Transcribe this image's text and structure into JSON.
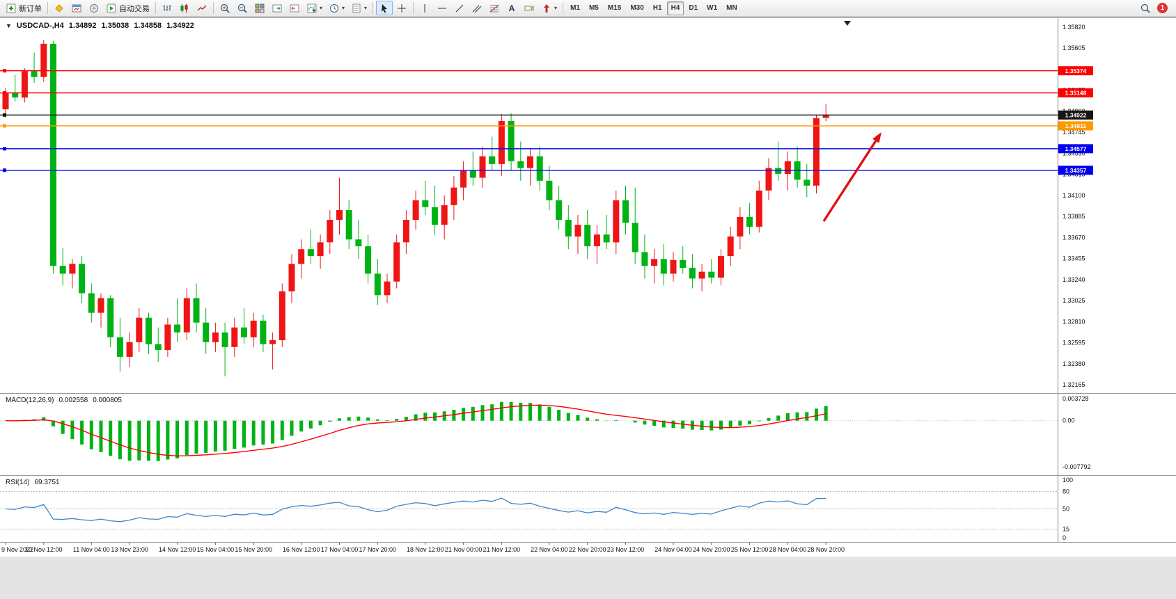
{
  "toolbar": {
    "new_order_label": "新订单",
    "autotrading_label": "自动交易",
    "timeframes": [
      "M1",
      "M5",
      "M15",
      "M30",
      "H1",
      "H4",
      "D1",
      "W1",
      "MN"
    ],
    "active_timeframe": "H4",
    "notification_count": "1"
  },
  "chart_data": {
    "type": "candlestick",
    "symbol": "USDCAD-",
    "period": "H4",
    "header_symbol": "USDCAD-,H4",
    "current": {
      "open": "1.34892",
      "high": "1.35038",
      "low": "1.34858",
      "close": "1.34922"
    },
    "y_axis": {
      "max": 1.3582,
      "min": 1.32165,
      "ticks": [
        1.3582,
        1.35605,
        1.3539,
        1.35175,
        1.3496,
        1.34745,
        1.3453,
        1.34315,
        1.341,
        1.33885,
        1.3367,
        1.33455,
        1.3324,
        1.33025,
        1.3281,
        1.32595,
        1.3238,
        1.32165
      ]
    },
    "levels": [
      {
        "price": 1.35374,
        "color": "#ff0000"
      },
      {
        "price": 1.35148,
        "color": "#ff0000"
      },
      {
        "price": 1.34922,
        "color": "#151515"
      },
      {
        "price": 1.34811,
        "color": "#ff9900"
      },
      {
        "price": 1.34577,
        "color": "#0000ee"
      },
      {
        "price": 1.34357,
        "color": "#0000ee"
      }
    ],
    "candles": [
      [
        1.3498,
        1.352,
        1.349,
        1.3515
      ],
      [
        1.3515,
        1.3533,
        1.3506,
        1.351
      ],
      [
        1.351,
        1.354,
        1.3505,
        1.3537
      ],
      [
        1.3537,
        1.3556,
        1.3525,
        1.3531
      ],
      [
        1.3531,
        1.3569,
        1.3526,
        1.3565
      ],
      [
        1.3565,
        1.3568,
        1.333,
        1.3338
      ],
      [
        1.3338,
        1.3356,
        1.3318,
        1.333
      ],
      [
        1.333,
        1.3345,
        1.3315,
        1.334
      ],
      [
        1.334,
        1.3348,
        1.33,
        1.331
      ],
      [
        1.331,
        1.332,
        1.328,
        1.329
      ],
      [
        1.329,
        1.331,
        1.3275,
        1.3305
      ],
      [
        1.3305,
        1.3308,
        1.3255,
        1.3265
      ],
      [
        1.3265,
        1.3285,
        1.323,
        1.3245
      ],
      [
        1.3245,
        1.327,
        1.3235,
        1.326
      ],
      [
        1.326,
        1.3295,
        1.325,
        1.3285
      ],
      [
        1.3285,
        1.329,
        1.3248,
        1.3258
      ],
      [
        1.3258,
        1.3275,
        1.324,
        1.3252
      ],
      [
        1.3252,
        1.3285,
        1.3245,
        1.3278
      ],
      [
        1.3278,
        1.3305,
        1.326,
        1.327
      ],
      [
        1.327,
        1.3315,
        1.3262,
        1.3305
      ],
      [
        1.3305,
        1.332,
        1.327,
        1.328
      ],
      [
        1.328,
        1.3295,
        1.3248,
        1.326
      ],
      [
        1.326,
        1.328,
        1.325,
        1.327
      ],
      [
        1.327,
        1.328,
        1.3225,
        1.3255
      ],
      [
        1.3255,
        1.3285,
        1.3245,
        1.3275
      ],
      [
        1.3275,
        1.3295,
        1.3258,
        1.3265
      ],
      [
        1.3265,
        1.329,
        1.3255,
        1.3282
      ],
      [
        1.3282,
        1.3288,
        1.325,
        1.3258
      ],
      [
        1.3258,
        1.327,
        1.3232,
        1.3262
      ],
      [
        1.3262,
        1.332,
        1.3255,
        1.3312
      ],
      [
        1.3312,
        1.335,
        1.33,
        1.334
      ],
      [
        1.334,
        1.3365,
        1.3325,
        1.3355
      ],
      [
        1.3355,
        1.3375,
        1.334,
        1.3348
      ],
      [
        1.3348,
        1.337,
        1.3335,
        1.3362
      ],
      [
        1.3362,
        1.3395,
        1.335,
        1.3385
      ],
      [
        1.3385,
        1.3428,
        1.337,
        1.3395
      ],
      [
        1.3395,
        1.3405,
        1.3355,
        1.3365
      ],
      [
        1.3365,
        1.3385,
        1.3345,
        1.3358
      ],
      [
        1.3358,
        1.337,
        1.332,
        1.333
      ],
      [
        1.333,
        1.3345,
        1.3298,
        1.3308
      ],
      [
        1.3308,
        1.333,
        1.33,
        1.3322
      ],
      [
        1.3322,
        1.337,
        1.3315,
        1.3362
      ],
      [
        1.3362,
        1.3395,
        1.335,
        1.3385
      ],
      [
        1.3385,
        1.3415,
        1.3375,
        1.3405
      ],
      [
        1.3405,
        1.3425,
        1.339,
        1.3398
      ],
      [
        1.3398,
        1.342,
        1.337,
        1.338
      ],
      [
        1.338,
        1.341,
        1.3365,
        1.34
      ],
      [
        1.34,
        1.343,
        1.3385,
        1.3418
      ],
      [
        1.3418,
        1.3445,
        1.3405,
        1.3435
      ],
      [
        1.3435,
        1.3455,
        1.342,
        1.3428
      ],
      [
        1.3428,
        1.346,
        1.3418,
        1.345
      ],
      [
        1.345,
        1.347,
        1.3435,
        1.3442
      ],
      [
        1.3442,
        1.3493,
        1.343,
        1.3486
      ],
      [
        1.3486,
        1.3494,
        1.3435,
        1.3445
      ],
      [
        1.3445,
        1.3465,
        1.3425,
        1.3438
      ],
      [
        1.3438,
        1.3458,
        1.342,
        1.345
      ],
      [
        1.345,
        1.346,
        1.3415,
        1.3425
      ],
      [
        1.3425,
        1.344,
        1.3395,
        1.3405
      ],
      [
        1.3405,
        1.342,
        1.3375,
        1.3385
      ],
      [
        1.3385,
        1.34,
        1.3355,
        1.3368
      ],
      [
        1.3368,
        1.339,
        1.335,
        1.338
      ],
      [
        1.338,
        1.3395,
        1.3345,
        1.3358
      ],
      [
        1.3358,
        1.338,
        1.334,
        1.337
      ],
      [
        1.337,
        1.339,
        1.3355,
        1.3362
      ],
      [
        1.3362,
        1.3415,
        1.335,
        1.3405
      ],
      [
        1.3405,
        1.342,
        1.337,
        1.3382
      ],
      [
        1.3382,
        1.3418,
        1.334,
        1.3352
      ],
      [
        1.3352,
        1.337,
        1.3325,
        1.3338
      ],
      [
        1.3338,
        1.3355,
        1.332,
        1.3345
      ],
      [
        1.3345,
        1.336,
        1.3318,
        1.333
      ],
      [
        1.333,
        1.3352,
        1.3322,
        1.3344
      ],
      [
        1.3344,
        1.3358,
        1.333,
        1.3336
      ],
      [
        1.3336,
        1.335,
        1.3315,
        1.3325
      ],
      [
        1.3325,
        1.334,
        1.3312,
        1.3332
      ],
      [
        1.3332,
        1.3345,
        1.332,
        1.3326
      ],
      [
        1.3326,
        1.3355,
        1.3318,
        1.3348
      ],
      [
        1.3348,
        1.3378,
        1.3338,
        1.3368
      ],
      [
        1.3368,
        1.3398,
        1.3355,
        1.3388
      ],
      [
        1.3388,
        1.3402,
        1.337,
        1.3378
      ],
      [
        1.3378,
        1.3425,
        1.3372,
        1.3415
      ],
      [
        1.3415,
        1.3448,
        1.3405,
        1.3438
      ],
      [
        1.3438,
        1.3465,
        1.3425,
        1.3432
      ],
      [
        1.3432,
        1.3455,
        1.3415,
        1.3445
      ],
      [
        1.3445,
        1.346,
        1.3418,
        1.3426
      ],
      [
        1.3426,
        1.3442,
        1.3408,
        1.342
      ],
      [
        1.342,
        1.3492,
        1.3412,
        1.3489
      ],
      [
        1.34892,
        1.35038,
        1.34858,
        1.34922
      ]
    ],
    "time_labels": [
      {
        "i": 0,
        "label": "9 Nov 2022"
      },
      {
        "i": 4,
        "label": "10 Nov 12:00"
      },
      {
        "i": 9,
        "label": "11 Nov 04:00"
      },
      {
        "i": 13,
        "label": "13 Nov 23:00"
      },
      {
        "i": 18,
        "label": "14 Nov 12:00"
      },
      {
        "i": 22,
        "label": "15 Nov 04:00"
      },
      {
        "i": 26,
        "label": "15 Nov 20:00"
      },
      {
        "i": 31,
        "label": "16 Nov 12:00"
      },
      {
        "i": 35,
        "label": "17 Nov 04:00"
      },
      {
        "i": 39,
        "label": "17 Nov 20:00"
      },
      {
        "i": 44,
        "label": "18 Nov 12:00"
      },
      {
        "i": 48,
        "label": "21 Nov 00:00"
      },
      {
        "i": 52,
        "label": "21 Nov 12:00"
      },
      {
        "i": 57,
        "label": "22 Nov 04:00"
      },
      {
        "i": 61,
        "label": "22 Nov 20:00"
      },
      {
        "i": 65,
        "label": "23 Nov 12:00"
      },
      {
        "i": 70,
        "label": "24 Nov 04:00"
      },
      {
        "i": 74,
        "label": "24 Nov 20:00"
      },
      {
        "i": 78,
        "label": "25 Nov 12:00"
      },
      {
        "i": 82,
        "label": "28 Nov 04:00"
      },
      {
        "i": 86,
        "label": "28 Nov 20:00"
      }
    ],
    "macd": {
      "label": "MACD(12,26,9)",
      "fast": 12,
      "slow": 26,
      "signal": 9,
      "value_main": "0.002558",
      "value_signal": "0.000805",
      "scale_max": 0.003728,
      "scale_min": -0.007792,
      "scale_labels": [
        "0.003728",
        "0.00",
        "-0.007792"
      ]
    },
    "rsi": {
      "label": "RSI(14)",
      "period": 14,
      "value": "69.3751",
      "levels": [
        80,
        50,
        15
      ],
      "scale_labels": [
        "100",
        "80",
        "50",
        "15",
        "0"
      ]
    },
    "colors": {
      "up": "#f01515",
      "down": "#00b315",
      "macd_hist": "#00b315",
      "macd_signal": "#ff0000",
      "rsi": "#3d85c8",
      "annotation_arrow": "#e01010"
    },
    "annotation": {
      "type": "arrow",
      "direction": "up-right"
    }
  }
}
